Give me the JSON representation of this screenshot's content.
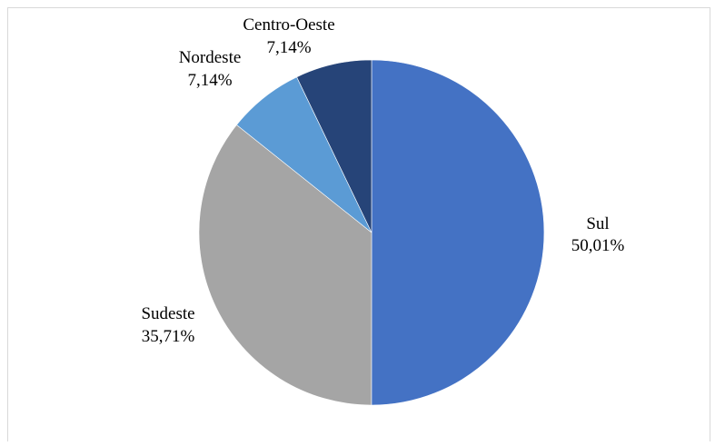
{
  "chart_data": {
    "type": "pie",
    "title": "",
    "start_angle_deg": 0,
    "direction": "clockwise",
    "slices": [
      {
        "name": "Sul",
        "value": 50.01,
        "label": "50,01%",
        "color": "#4472c4"
      },
      {
        "name": "Sudeste",
        "value": 35.71,
        "label": "35,71%",
        "color": "#a5a5a5"
      },
      {
        "name": "Nordeste",
        "value": 7.14,
        "label": "7,14%",
        "color": "#5b9bd5"
      },
      {
        "name": "Centro-Oeste",
        "value": 7.14,
        "label": "7,14%",
        "color": "#264478"
      }
    ]
  }
}
